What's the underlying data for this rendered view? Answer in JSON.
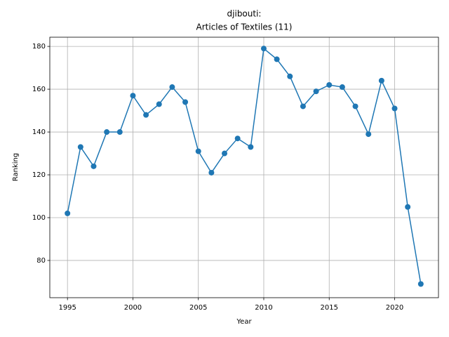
{
  "chart_data": {
    "type": "line",
    "title": [
      "djibouti:",
      "Articles of Textiles (11)"
    ],
    "x_label": "Year",
    "y_label": "Ranking",
    "x": [
      1995,
      1996,
      1997,
      1998,
      1999,
      2000,
      2001,
      2002,
      2003,
      2004,
      2005,
      2006,
      2007,
      2008,
      2009,
      2010,
      2011,
      2012,
      2013,
      2014,
      2015,
      2016,
      2017,
      2018,
      2019,
      2020,
      2021,
      2022
    ],
    "series": [
      {
        "name": "Ranking",
        "color": "#1f77b4",
        "values": [
          102,
          133,
          124,
          140,
          140,
          157,
          148,
          153,
          161,
          154,
          131,
          121,
          130,
          137,
          133,
          179,
          174,
          166,
          152,
          159,
          162,
          161,
          152,
          139,
          164,
          151,
          105,
          69
        ]
      }
    ],
    "xlim": [
      1993.65,
      2023.35
    ],
    "xticks": [
      1995,
      2000,
      2005,
      2010,
      2015,
      2020
    ],
    "ylim": [
      62.6,
      184.3
    ],
    "yticks": [
      80,
      100,
      120,
      140,
      160,
      180
    ],
    "grid": true
  }
}
